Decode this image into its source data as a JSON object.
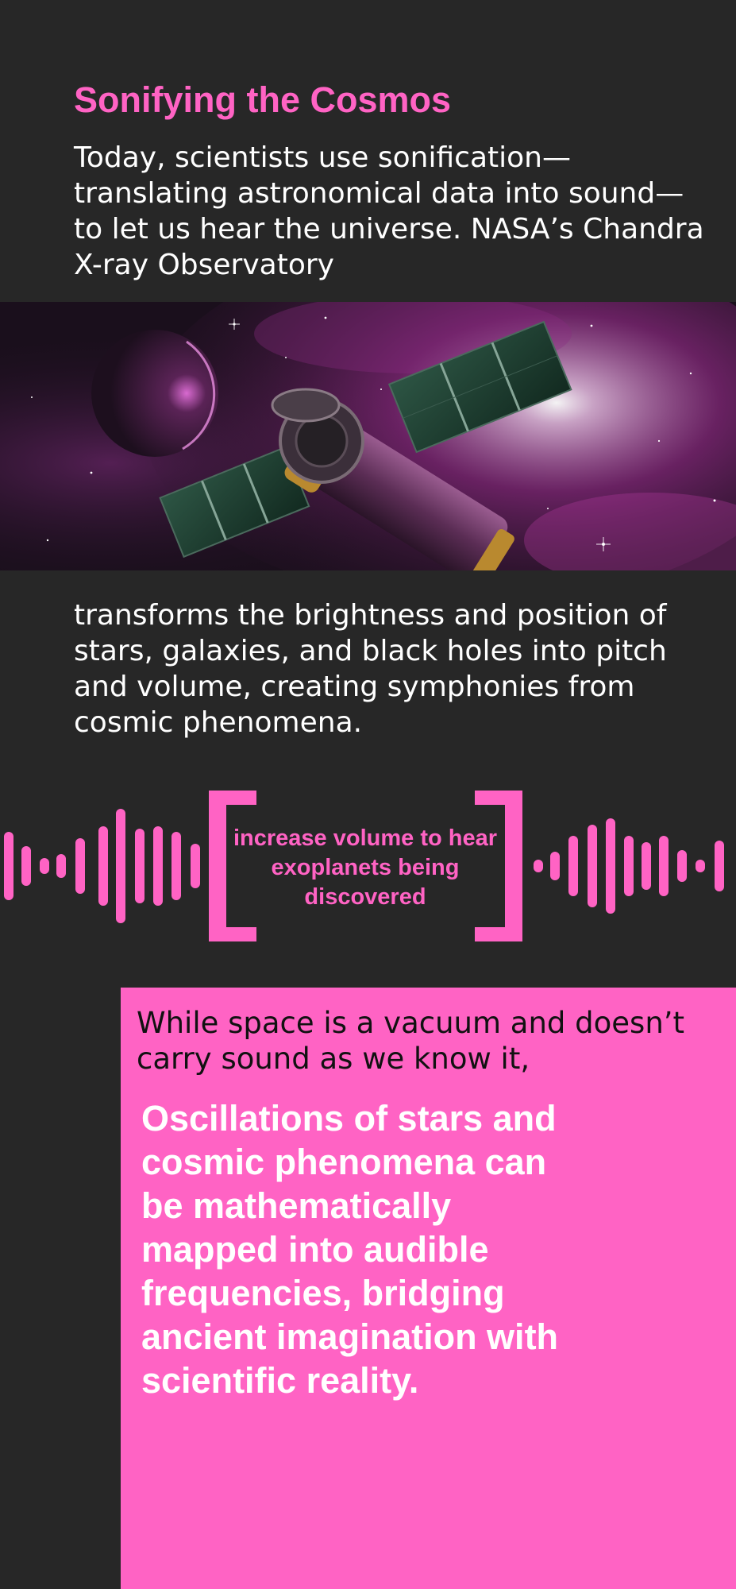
{
  "article": {
    "title": "Sonifying the Cosmos",
    "intro": "Today, scientists use sonification—translating astronomical data into sound—to let us hear the universe. NASA’s Chandra X-ray Observatory",
    "continuation": "transforms the brightness and position of stars, galaxies, and black holes into pitch and volume, creating symphonies from cosmic phenomena."
  },
  "hero_image": {
    "subject": "chandra-observatory-illustration",
    "colors": {
      "space": "#1a0f1c",
      "nebula": "#c23aa8",
      "panels": "#1f3a2e",
      "body": "#6b3a63",
      "gold": "#b9892f"
    }
  },
  "sound_prompt": {
    "label": "increase volume to hear exoplanets being discovered"
  },
  "panel": {
    "lead": "While space is a vacuum and doesn’t carry sound as we know it,",
    "quote": "Oscillations of stars and cosmic phenomena can be mathematically mapped into audible frequencies, bridging ancient imagination with scientific reality."
  },
  "theme": {
    "background": "#272727",
    "accent": "#ff63c4",
    "text": "#ffffff",
    "dark_text": "#111111"
  }
}
